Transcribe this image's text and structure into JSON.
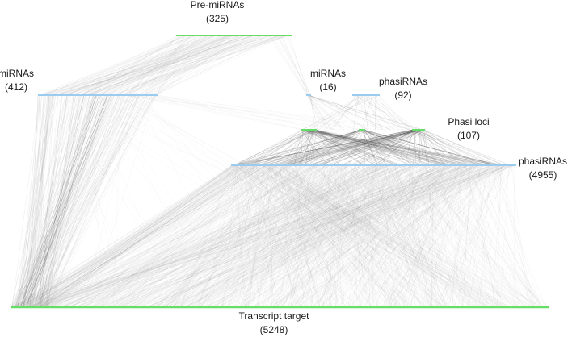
{
  "nodes": [
    {
      "id": "pre_mirnas",
      "label": "Pre-miRNAs",
      "count": "(325)",
      "color": "#66dd66"
    },
    {
      "id": "mirnas_left",
      "label": "miRNAs",
      "count": "(412)",
      "color": "#99ccee"
    },
    {
      "id": "mirnas_small",
      "label": "miRNAs",
      "count": "(16)",
      "color": "#99ccee"
    },
    {
      "id": "phasirnas_small",
      "label": "phasiRNAs",
      "count": "(92)",
      "color": "#99ccee"
    },
    {
      "id": "phasi_loci",
      "label": "Phasi loci",
      "count": "(107)",
      "color": "#66dd66"
    },
    {
      "id": "phasirnas_large",
      "label": "phasiRNAs",
      "count": "(4955)",
      "color": "#99ccee"
    },
    {
      "id": "transcript_target",
      "label": "Transcript target",
      "count": "(5248)",
      "color": "#66dd66"
    }
  ],
  "colors": {
    "edge": "#8a8a8a",
    "edge_dark": "#555555"
  }
}
